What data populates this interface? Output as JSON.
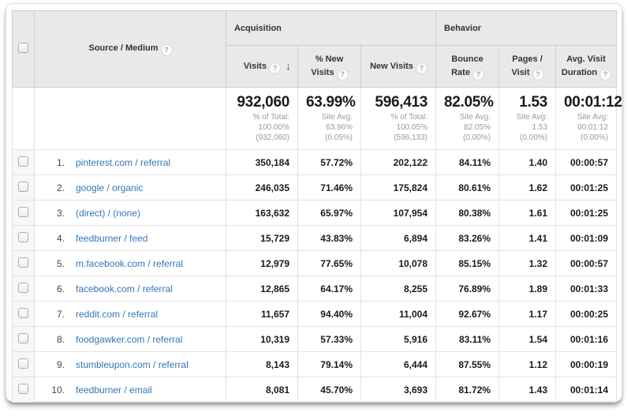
{
  "colors": {
    "header_bg": "#e9e9e9",
    "header_border": "#cfcfcf",
    "row_border": "#e2e2e2",
    "link_blue": "#3376b8",
    "subtext_gray": "#9a9a9a"
  },
  "table": {
    "header": {
      "source_medium_label": "Source / Medium",
      "help_glyph": "?",
      "sort_descending_glyph": "↓",
      "groups": {
        "acquisition": "Acquisition",
        "behavior": "Behavior"
      },
      "columns": {
        "visits": "Visits",
        "pct_new_visits": "% New Visits",
        "new_visits": "New Visits",
        "bounce_rate": "Bounce Rate",
        "pages_visit": "Pages / Visit",
        "avg_visit_duration": "Avg. Visit Duration"
      }
    },
    "summary": {
      "visits": {
        "value": "932,060",
        "sub": "% of Total:\n100.00%\n(932,060)"
      },
      "pct_new_visits": {
        "value": "63.99%",
        "sub": "Site Avg:\n63.96%\n(0.05%)"
      },
      "new_visits": {
        "value": "596,413",
        "sub": "% of Total:\n100.05%\n(596,133)"
      },
      "bounce_rate": {
        "value": "82.05%",
        "sub": "Site Avg:\n82.05%\n(0.00%)"
      },
      "pages_visit": {
        "value": "1.53",
        "sub": "Site Avg:\n1.53\n(0.00%)"
      },
      "avg_visit_duration": {
        "value": "00:01:12",
        "sub": "Site Avg:\n00:01:12\n(0.00%)"
      }
    },
    "rows": [
      {
        "rank": "1.",
        "source": "pinterest.com / referral",
        "visits": "350,184",
        "pct_new": "57.72%",
        "new_visits": "202,122",
        "bounce": "84.11%",
        "pages": "1.40",
        "duration": "00:00:57"
      },
      {
        "rank": "2.",
        "source": "google / organic",
        "visits": "246,035",
        "pct_new": "71.46%",
        "new_visits": "175,824",
        "bounce": "80.61%",
        "pages": "1.62",
        "duration": "00:01:25"
      },
      {
        "rank": "3.",
        "source": "(direct) / (none)",
        "visits": "163,632",
        "pct_new": "65.97%",
        "new_visits": "107,954",
        "bounce": "80.38%",
        "pages": "1.61",
        "duration": "00:01:25"
      },
      {
        "rank": "4.",
        "source": "feedburner / feed",
        "visits": "15,729",
        "pct_new": "43.83%",
        "new_visits": "6,894",
        "bounce": "83.26%",
        "pages": "1.41",
        "duration": "00:01:09"
      },
      {
        "rank": "5.",
        "source": "m.facebook.com / referral",
        "visits": "12,979",
        "pct_new": "77.65%",
        "new_visits": "10,078",
        "bounce": "85.15%",
        "pages": "1.32",
        "duration": "00:00:57"
      },
      {
        "rank": "6.",
        "source": "facebook.com / referral",
        "visits": "12,865",
        "pct_new": "64.17%",
        "new_visits": "8,255",
        "bounce": "76.89%",
        "pages": "1.89",
        "duration": "00:01:33"
      },
      {
        "rank": "7.",
        "source": "reddit.com / referral",
        "visits": "11,657",
        "pct_new": "94.40%",
        "new_visits": "11,004",
        "bounce": "92.67%",
        "pages": "1.17",
        "duration": "00:00:25"
      },
      {
        "rank": "8.",
        "source": "foodgawker.com / referral",
        "visits": "10,319",
        "pct_new": "57.33%",
        "new_visits": "5,916",
        "bounce": "83.11%",
        "pages": "1.54",
        "duration": "00:01:16"
      },
      {
        "rank": "9.",
        "source": "stumbleupon.com / referral",
        "visits": "8,143",
        "pct_new": "79.14%",
        "new_visits": "6,444",
        "bounce": "87.55%",
        "pages": "1.12",
        "duration": "00:00:19"
      },
      {
        "rank": "10.",
        "source": "feedburner / email",
        "visits": "8,081",
        "pct_new": "45.70%",
        "new_visits": "3,693",
        "bounce": "81.72%",
        "pages": "1.43",
        "duration": "00:01:14"
      }
    ]
  }
}
